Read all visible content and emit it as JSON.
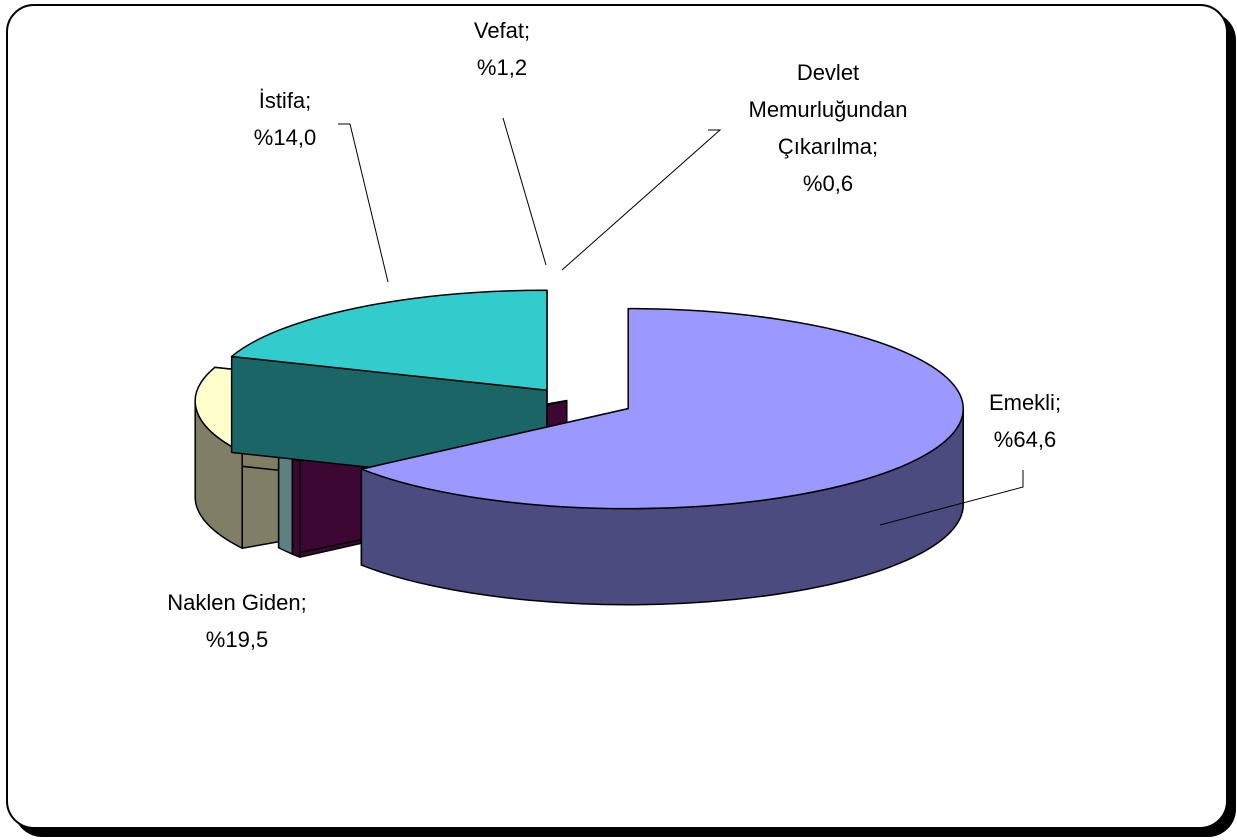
{
  "chart_data": {
    "type": "pie",
    "style": "3d-exploded",
    "slices": [
      {
        "name": "Emekli",
        "label": "Emekli;",
        "pct": "%64,6",
        "value": 64.6,
        "top": "#9999ff",
        "side": "#4b4b80"
      },
      {
        "name": "Devlet Memurluğundan Çıkarılma",
        "label": "Devlet|Memurluğundan|Çıkarılma;",
        "pct": "%0,6",
        "value": 0.6,
        "top": "#6a0f5a",
        "side": "#3c0833"
      },
      {
        "name": "Vefat",
        "label": "Vefat;",
        "pct": "%1,2",
        "value": 1.2,
        "top": "#ccffff",
        "side": "#5f8080"
      },
      {
        "name": "İstifa",
        "label": "İstifa;",
        "pct": "%14,0",
        "value": 14.0,
        "top": "#ffffcc",
        "side": "#807f66"
      },
      {
        "name": "Naklen Giden",
        "label": "Naklen Giden;",
        "pct": "%19,5",
        "value": 19.5,
        "top": "#33cccc",
        "side": "#1a6666"
      }
    ]
  }
}
